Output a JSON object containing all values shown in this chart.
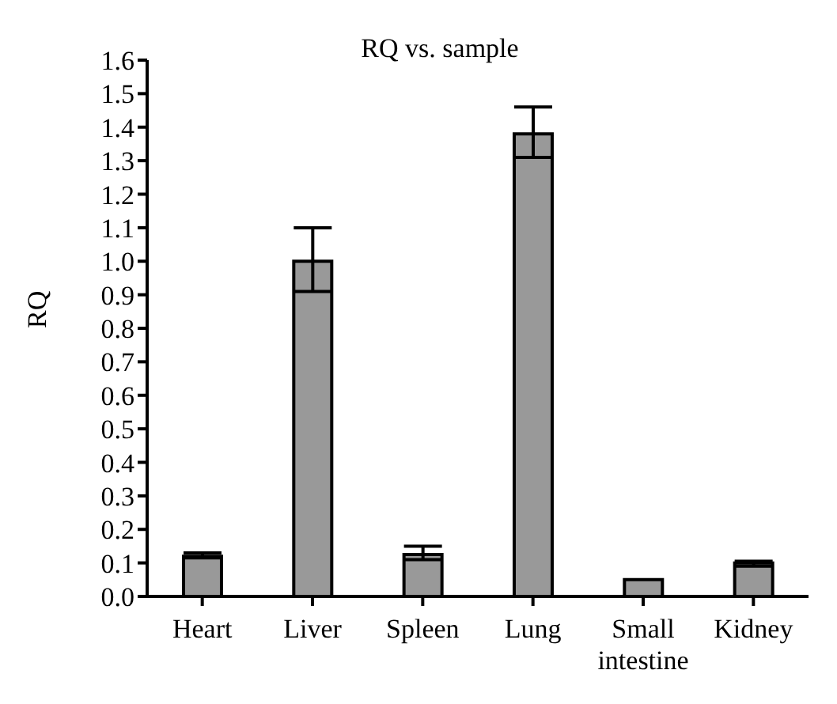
{
  "chart_data": {
    "type": "bar",
    "title": "RQ vs. sample",
    "ylabel": "RQ",
    "categories": [
      "Heart",
      "Liver",
      "Spleen",
      "Lung",
      "Small intestine",
      "Kidney"
    ],
    "values": [
      0.12,
      1.0,
      0.125,
      1.38,
      0.05,
      0.1
    ],
    "errors": [
      [
        0.115,
        0.13
      ],
      [
        0.91,
        1.1
      ],
      [
        0.11,
        0.15
      ],
      [
        1.31,
        1.46
      ],
      null,
      [
        0.09,
        0.105
      ]
    ],
    "color": "#999999",
    "ylim": [
      0,
      1.6
    ],
    "yticks": [
      {
        "value": 0,
        "label": "0.0"
      },
      0.1,
      0.2,
      0.3,
      0.4,
      0.5,
      0.6,
      0.7,
      0.8,
      0.9,
      {
        "value": 1,
        "label": "1.0"
      },
      1.1,
      1.2,
      1.3,
      1.4,
      1.5,
      1.6
    ],
    "grid": false,
    "legend": false
  }
}
